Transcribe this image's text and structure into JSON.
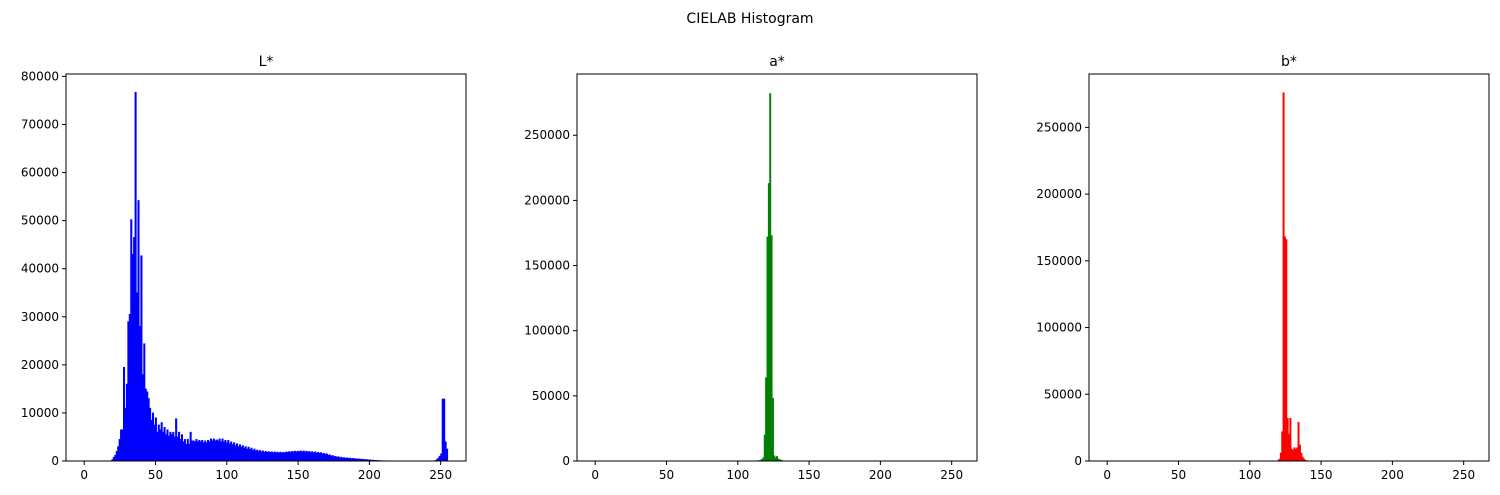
{
  "figure": {
    "suptitle": "CIELAB Histogram"
  },
  "chart_data": [
    {
      "type": "histogram",
      "title": "L*",
      "xlabel": "",
      "ylabel": "",
      "xlim": [
        -12.75,
        267.75
      ],
      "ylim": [
        0,
        80500
      ],
      "xticks": [
        0,
        50,
        100,
        150,
        200,
        250
      ],
      "yticks": [
        0,
        10000,
        20000,
        30000,
        40000,
        50000,
        60000,
        70000,
        80000
      ],
      "color": "#0000ff",
      "bins": [
        0,
        256
      ],
      "values": [
        0,
        0,
        0,
        0,
        0,
        0,
        0,
        0,
        0,
        0,
        0,
        0,
        0,
        0,
        0,
        0,
        0,
        0,
        50,
        300,
        800,
        1200,
        2000,
        3000,
        4500,
        6500,
        6500,
        19500,
        11000,
        16000,
        29000,
        30500,
        50200,
        43000,
        46500,
        76700,
        35000,
        54200,
        28000,
        42700,
        18000,
        24400,
        15000,
        14400,
        13000,
        11000,
        8500,
        10000,
        7500,
        9000,
        6000,
        7500,
        6500,
        8000,
        6000,
        7000,
        5500,
        6500,
        5200,
        6000,
        5500,
        6000,
        5000,
        8800,
        5000,
        6000,
        4500,
        5500,
        4000,
        4500,
        3500,
        4500,
        3500,
        6000,
        4200,
        4200,
        4000,
        4500,
        4000,
        4300,
        4000,
        4300,
        3800,
        4200,
        3800,
        4300,
        4000,
        4600,
        4200,
        4600,
        4200,
        4400,
        4200,
        4600,
        4000,
        4600,
        4000,
        4300,
        3800,
        4300,
        3600,
        4000,
        3400,
        3800,
        3200,
        3600,
        3000,
        3400,
        2900,
        3200,
        2700,
        3000,
        2500,
        2900,
        2400,
        2700,
        2200,
        2500,
        2100,
        2300,
        2000,
        2200,
        1900,
        2100,
        1850,
        2000,
        1800,
        1950,
        1800,
        1900,
        1750,
        1900,
        1750,
        1850,
        1700,
        1850,
        1700,
        1800,
        1700,
        1900,
        1800,
        1950,
        1850,
        2000,
        1900,
        2050,
        1900,
        2050,
        1950,
        2100,
        1900,
        2100,
        1900,
        2050,
        1850,
        2000,
        1800,
        1950,
        1700,
        1900,
        1650,
        1800,
        1600,
        1750,
        1500,
        1600,
        1400,
        1500,
        1200,
        1300,
        1050,
        1150,
        900,
        1000,
        800,
        900,
        700,
        800,
        650,
        700,
        600,
        650,
        550,
        600,
        500,
        550,
        450,
        500,
        400,
        450,
        350,
        400,
        300,
        350,
        250,
        300,
        200,
        250,
        150,
        200,
        100,
        150,
        80,
        100,
        60,
        80,
        50,
        60,
        40,
        50,
        30,
        40,
        30,
        30,
        20,
        25,
        20,
        20,
        15,
        15,
        10,
        10,
        10,
        10,
        10,
        10,
        10,
        10,
        10,
        10,
        10,
        10,
        10,
        10,
        10,
        10,
        10,
        10,
        10,
        10,
        10,
        10,
        100,
        300,
        600,
        1000,
        1500,
        12900,
        12900,
        4000,
        2500,
        0
      ]
    },
    {
      "type": "histogram",
      "title": "a*",
      "xlabel": "",
      "ylabel": "",
      "xlim": [
        -12.75,
        267.75
      ],
      "ylim": [
        0,
        297000
      ],
      "xticks": [
        0,
        50,
        100,
        150,
        200,
        250
      ],
      "yticks": [
        0,
        50000,
        100000,
        150000,
        200000,
        250000
      ],
      "color": "#008000",
      "bins": [
        0,
        256
      ],
      "values": [
        0,
        0,
        0,
        0,
        0,
        0,
        0,
        0,
        0,
        0,
        0,
        0,
        0,
        0,
        0,
        0,
        0,
        0,
        0,
        0,
        0,
        0,
        0,
        0,
        0,
        0,
        0,
        0,
        0,
        0,
        0,
        0,
        0,
        0,
        0,
        0,
        0,
        0,
        0,
        0,
        0,
        0,
        0,
        0,
        0,
        0,
        0,
        0,
        0,
        0,
        0,
        0,
        0,
        0,
        0,
        0,
        0,
        0,
        0,
        0,
        0,
        0,
        0,
        0,
        0,
        0,
        0,
        0,
        0,
        0,
        0,
        0,
        0,
        0,
        0,
        0,
        0,
        0,
        0,
        0,
        0,
        0,
        0,
        0,
        0,
        0,
        0,
        0,
        0,
        0,
        0,
        0,
        0,
        0,
        0,
        0,
        0,
        0,
        0,
        0,
        0,
        0,
        0,
        0,
        0,
        0,
        0,
        0,
        0,
        0,
        0,
        0,
        0,
        0,
        0,
        0,
        0,
        50,
        100,
        200,
        400,
        700,
        1200,
        2500,
        20000,
        64000,
        172000,
        213000,
        282000,
        173000,
        48000,
        4000,
        2500,
        3500,
        1500,
        1000,
        600,
        300,
        150,
        80,
        40,
        20,
        0,
        0,
        0,
        0,
        0,
        0,
        0,
        0,
        0,
        0,
        0,
        0,
        0,
        0,
        0,
        0,
        0,
        0,
        0,
        0,
        0,
        0,
        0,
        0,
        0,
        0,
        0,
        0,
        0,
        0,
        0,
        0,
        0,
        0,
        0,
        0,
        0,
        0,
        0,
        0,
        0,
        0,
        0,
        0,
        0,
        0,
        0,
        0,
        0,
        0,
        0,
        0,
        0,
        0,
        0,
        0,
        0,
        0,
        0,
        0,
        0,
        0,
        0,
        0,
        0,
        0,
        0,
        0,
        0,
        0,
        0,
        0,
        0,
        0,
        0,
        0,
        0,
        0,
        0,
        0,
        0,
        0,
        0,
        0,
        0,
        0,
        0,
        0,
        0,
        0,
        0,
        0,
        0,
        0,
        0,
        0,
        0,
        0,
        0,
        0,
        0,
        0,
        0,
        0,
        0,
        0,
        0,
        0,
        0,
        0,
        0,
        0,
        0,
        0,
        0,
        0,
        0,
        0,
        0,
        0,
        0,
        0,
        0,
        0,
        0,
        0
      ]
    },
    {
      "type": "histogram",
      "title": "b*",
      "xlabel": "",
      "ylabel": "",
      "xlim": [
        -12.75,
        267.75
      ],
      "ylim": [
        0,
        290000
      ],
      "xticks": [
        0,
        50,
        100,
        150,
        200,
        250
      ],
      "yticks": [
        0,
        50000,
        100000,
        150000,
        200000,
        250000
      ],
      "color": "#ff0000",
      "bins": [
        0,
        256
      ],
      "values": [
        0,
        0,
        0,
        0,
        0,
        0,
        0,
        0,
        0,
        0,
        0,
        0,
        0,
        0,
        0,
        0,
        0,
        0,
        0,
        0,
        0,
        0,
        0,
        0,
        0,
        0,
        0,
        0,
        0,
        0,
        0,
        0,
        0,
        0,
        0,
        0,
        0,
        0,
        0,
        0,
        0,
        0,
        0,
        0,
        0,
        0,
        0,
        0,
        0,
        0,
        0,
        0,
        0,
        0,
        0,
        0,
        0,
        0,
        0,
        0,
        0,
        0,
        0,
        0,
        0,
        0,
        0,
        0,
        0,
        0,
        0,
        0,
        0,
        0,
        0,
        0,
        0,
        0,
        0,
        0,
        0,
        0,
        0,
        0,
        0,
        0,
        0,
        0,
        0,
        0,
        0,
        0,
        0,
        0,
        0,
        0,
        0,
        0,
        0,
        0,
        0,
        0,
        0,
        0,
        0,
        0,
        0,
        0,
        0,
        0,
        0,
        0,
        0,
        0,
        0,
        0,
        0,
        0,
        0,
        0,
        0,
        0,
        0,
        50,
        150,
        400,
        1500,
        6000,
        22000,
        276000,
        168000,
        166000,
        32000,
        20000,
        32000,
        9000,
        8000,
        10000,
        9000,
        10000,
        29000,
        12000,
        6000,
        3000,
        1500,
        700,
        300,
        150,
        80,
        40,
        20,
        10,
        0,
        0,
        0,
        0,
        0,
        0,
        0,
        0,
        0,
        0,
        0,
        0,
        0,
        0,
        0,
        0,
        0,
        0,
        0,
        0,
        0,
        0,
        0,
        0,
        0,
        0,
        0,
        0,
        0,
        0,
        0,
        0,
        0,
        0,
        0,
        0,
        0,
        0,
        0,
        0,
        0,
        0,
        0,
        0,
        0,
        0,
        0,
        0,
        0,
        0,
        0,
        0,
        0,
        0,
        0,
        0,
        0,
        0,
        0,
        0,
        0,
        0,
        0,
        0,
        0,
        0,
        0,
        0,
        0,
        0,
        0,
        0,
        0,
        0,
        0,
        0,
        0,
        0,
        0,
        0,
        0,
        0,
        0,
        0,
        0,
        0,
        0,
        0,
        0,
        0,
        0,
        0,
        0,
        0,
        0,
        0,
        0,
        0,
        0,
        0,
        0,
        0,
        0,
        0,
        0,
        0,
        0,
        0,
        0,
        0,
        0,
        0,
        0,
        0,
        0,
        0
      ]
    }
  ]
}
